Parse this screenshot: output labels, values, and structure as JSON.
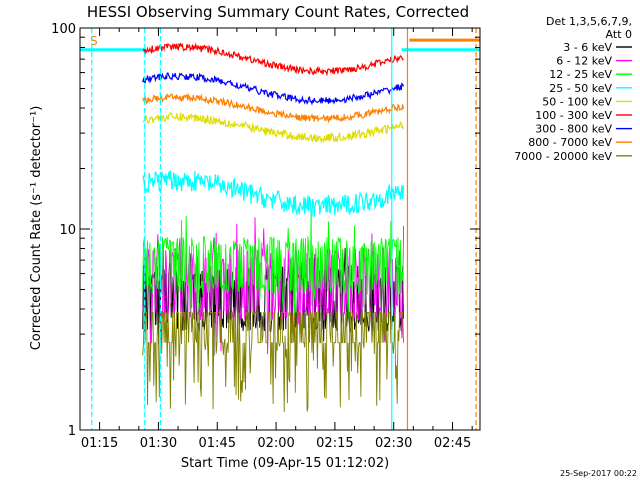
{
  "chart_data": {
    "type": "line",
    "title": "HESSI Observing Summary Count Rates, Corrected",
    "xlabel": "Start Time (09-Apr-15 01:12:02)",
    "ylabel": "Corrected Count Rate (s⁻¹ detector⁻¹)",
    "yscale": "log",
    "ylim": [
      1,
      100
    ],
    "xlim_minutes": [
      70,
      172
    ],
    "x_ticks": [
      {
        "label": "01:15",
        "minutes": 75
      },
      {
        "label": "01:30",
        "minutes": 90
      },
      {
        "label": "01:45",
        "minutes": 105
      },
      {
        "label": "02:00",
        "minutes": 120
      },
      {
        "label": "02:15",
        "minutes": 135
      },
      {
        "label": "02:30",
        "minutes": 150
      },
      {
        "label": "02:45",
        "minutes": 165
      }
    ],
    "y_ticks": [
      {
        "label": "1",
        "value": 1
      },
      {
        "label": "10",
        "value": 10
      },
      {
        "label": "100",
        "value": 100
      }
    ],
    "legend_header": [
      "Det 1,3,5,6,7,9,",
      "Att 0"
    ],
    "legend_placement": "right",
    "flag_label": "S",
    "footer_date": "25-Sep-2017 00:22",
    "series": [
      {
        "name": "3 - 6 keV",
        "color": "#000000",
        "level": 4.5,
        "noise": 0.9,
        "mode": "noisy"
      },
      {
        "name": "6 - 12 keV",
        "color": "#ff00ff",
        "level": 5.3,
        "noise": 1.0,
        "mode": "noisy"
      },
      {
        "name": "12 - 25 keV",
        "color": "#00ff00",
        "level": 6.6,
        "noise": 0.8,
        "mode": "noisy"
      },
      {
        "name": "25 - 50 keV",
        "color": "#00ffff",
        "level": 15,
        "amp": 0.15,
        "noise": 0.12,
        "mode": "wave"
      },
      {
        "name": "50 - 100 keV",
        "color": "#dddd00",
        "level": 32,
        "amp": 0.12,
        "noise": 0.05,
        "mode": "wave"
      },
      {
        "name": "100 - 300 keV",
        "color": "#ff0000",
        "level": 70,
        "amp": 0.14,
        "noise": 0.04,
        "mode": "wave"
      },
      {
        "name": "300 - 800 keV",
        "color": "#0000ff",
        "level": 50,
        "amp": 0.14,
        "noise": 0.04,
        "mode": "wave"
      },
      {
        "name": "800 - 7000 keV",
        "color": "#ff8000",
        "level": 40,
        "amp": 0.12,
        "noise": 0.04,
        "mode": "wave"
      },
      {
        "name": "7000 - 20000 keV",
        "color": "#808000",
        "level": 3.2,
        "noise": 0.6,
        "mode": "sparse"
      }
    ],
    "observation_start_minutes": 86,
    "observation_end_minutes": 152.5,
    "vertical_markers": [
      {
        "minutes": 73,
        "color": "#00ffff",
        "style": "dashed"
      },
      {
        "minutes": 86.5,
        "color": "#00ffff",
        "style": "dashed"
      },
      {
        "minutes": 90.5,
        "color": "#00ffff",
        "style": "dashed"
      },
      {
        "minutes": 149.5,
        "color": "#00ffff",
        "style": "solid"
      },
      {
        "minutes": 153.5,
        "color": "#ff8000",
        "style": "solid"
      },
      {
        "minutes": 171,
        "color": "#ff8000",
        "style": "dashed"
      }
    ],
    "horizontal_segments": [
      {
        "from": 70,
        "to": 86,
        "value": 78,
        "color": "#00ffff"
      },
      {
        "from": 152,
        "to": 172,
        "value": 78,
        "color": "#00ffff"
      },
      {
        "from": 154,
        "to": 172,
        "value": 87,
        "color": "#ff8000"
      }
    ]
  }
}
